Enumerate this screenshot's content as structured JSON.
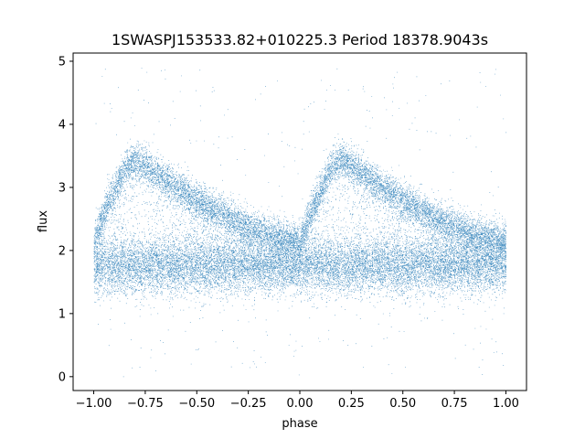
{
  "chart_data": {
    "type": "scatter",
    "title": "1SWASPJ153533.82+010225.3 Period 18378.9043s",
    "xlabel": "phase",
    "ylabel": "flux",
    "xlim": [
      -1.1,
      1.1
    ],
    "ylim": [
      -0.22,
      5.13
    ],
    "xticks": [
      -1.0,
      -0.75,
      -0.5,
      -0.25,
      0.0,
      0.25,
      0.5,
      0.75,
      1.0
    ],
    "xtick_labels": [
      "−1.00",
      "−0.75",
      "−0.50",
      "−0.25",
      "0.00",
      "0.25",
      "0.50",
      "0.75",
      "1.00"
    ],
    "yticks": [
      0,
      1,
      2,
      3,
      4,
      5
    ],
    "ytick_labels": [
      "0",
      "1",
      "2",
      "3",
      "4",
      "5"
    ],
    "grid": false,
    "legend": "none",
    "point_color": "#1f77b4",
    "series": [
      {
        "name": "",
        "phase_range": [
          -1.0,
          1.0
        ],
        "approx_points": 30000,
        "upper_branch_flux_by_phase": {
          "x": [
            -1.0,
            -0.93,
            -0.85,
            -0.8,
            -0.75,
            -0.6,
            -0.45,
            -0.3,
            -0.15,
            0.0,
            0.07,
            0.15,
            0.2,
            0.25,
            0.4,
            0.55,
            0.7,
            0.85,
            1.0
          ],
          "y": [
            2.15,
            2.75,
            3.3,
            3.45,
            3.35,
            3.0,
            2.7,
            2.45,
            2.25,
            2.15,
            2.75,
            3.3,
            3.45,
            3.35,
            3.0,
            2.7,
            2.45,
            2.25,
            2.15
          ]
        },
        "lower_band_flux": {
          "center": 1.75,
          "spread": 0.22
        },
        "outlier_flux_range": [
          0.0,
          4.9
        ]
      }
    ]
  }
}
